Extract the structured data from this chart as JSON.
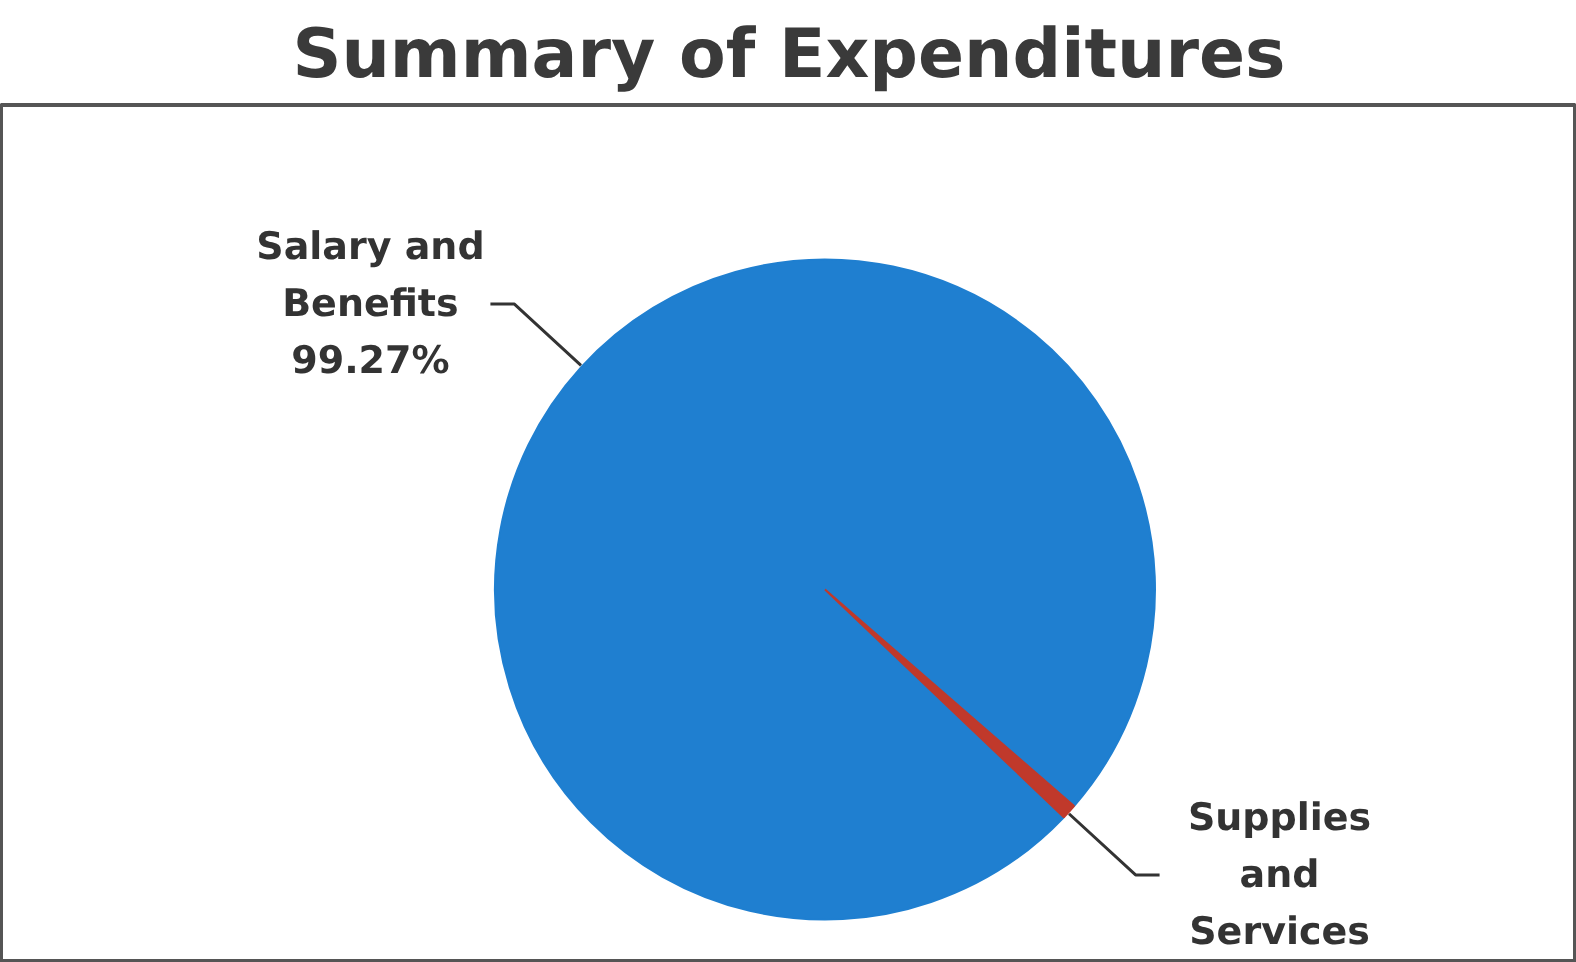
{
  "chart_data": {
    "type": "pie",
    "title": "Summary of Expenditures",
    "categories": [
      "Salary and Benefits",
      "Supplies and Services"
    ],
    "values": [
      99.27,
      0.73
    ],
    "colors": [
      "#1f7fd0",
      "#c0392b"
    ],
    "value_labels": [
      "99.27%",
      null
    ]
  }
}
